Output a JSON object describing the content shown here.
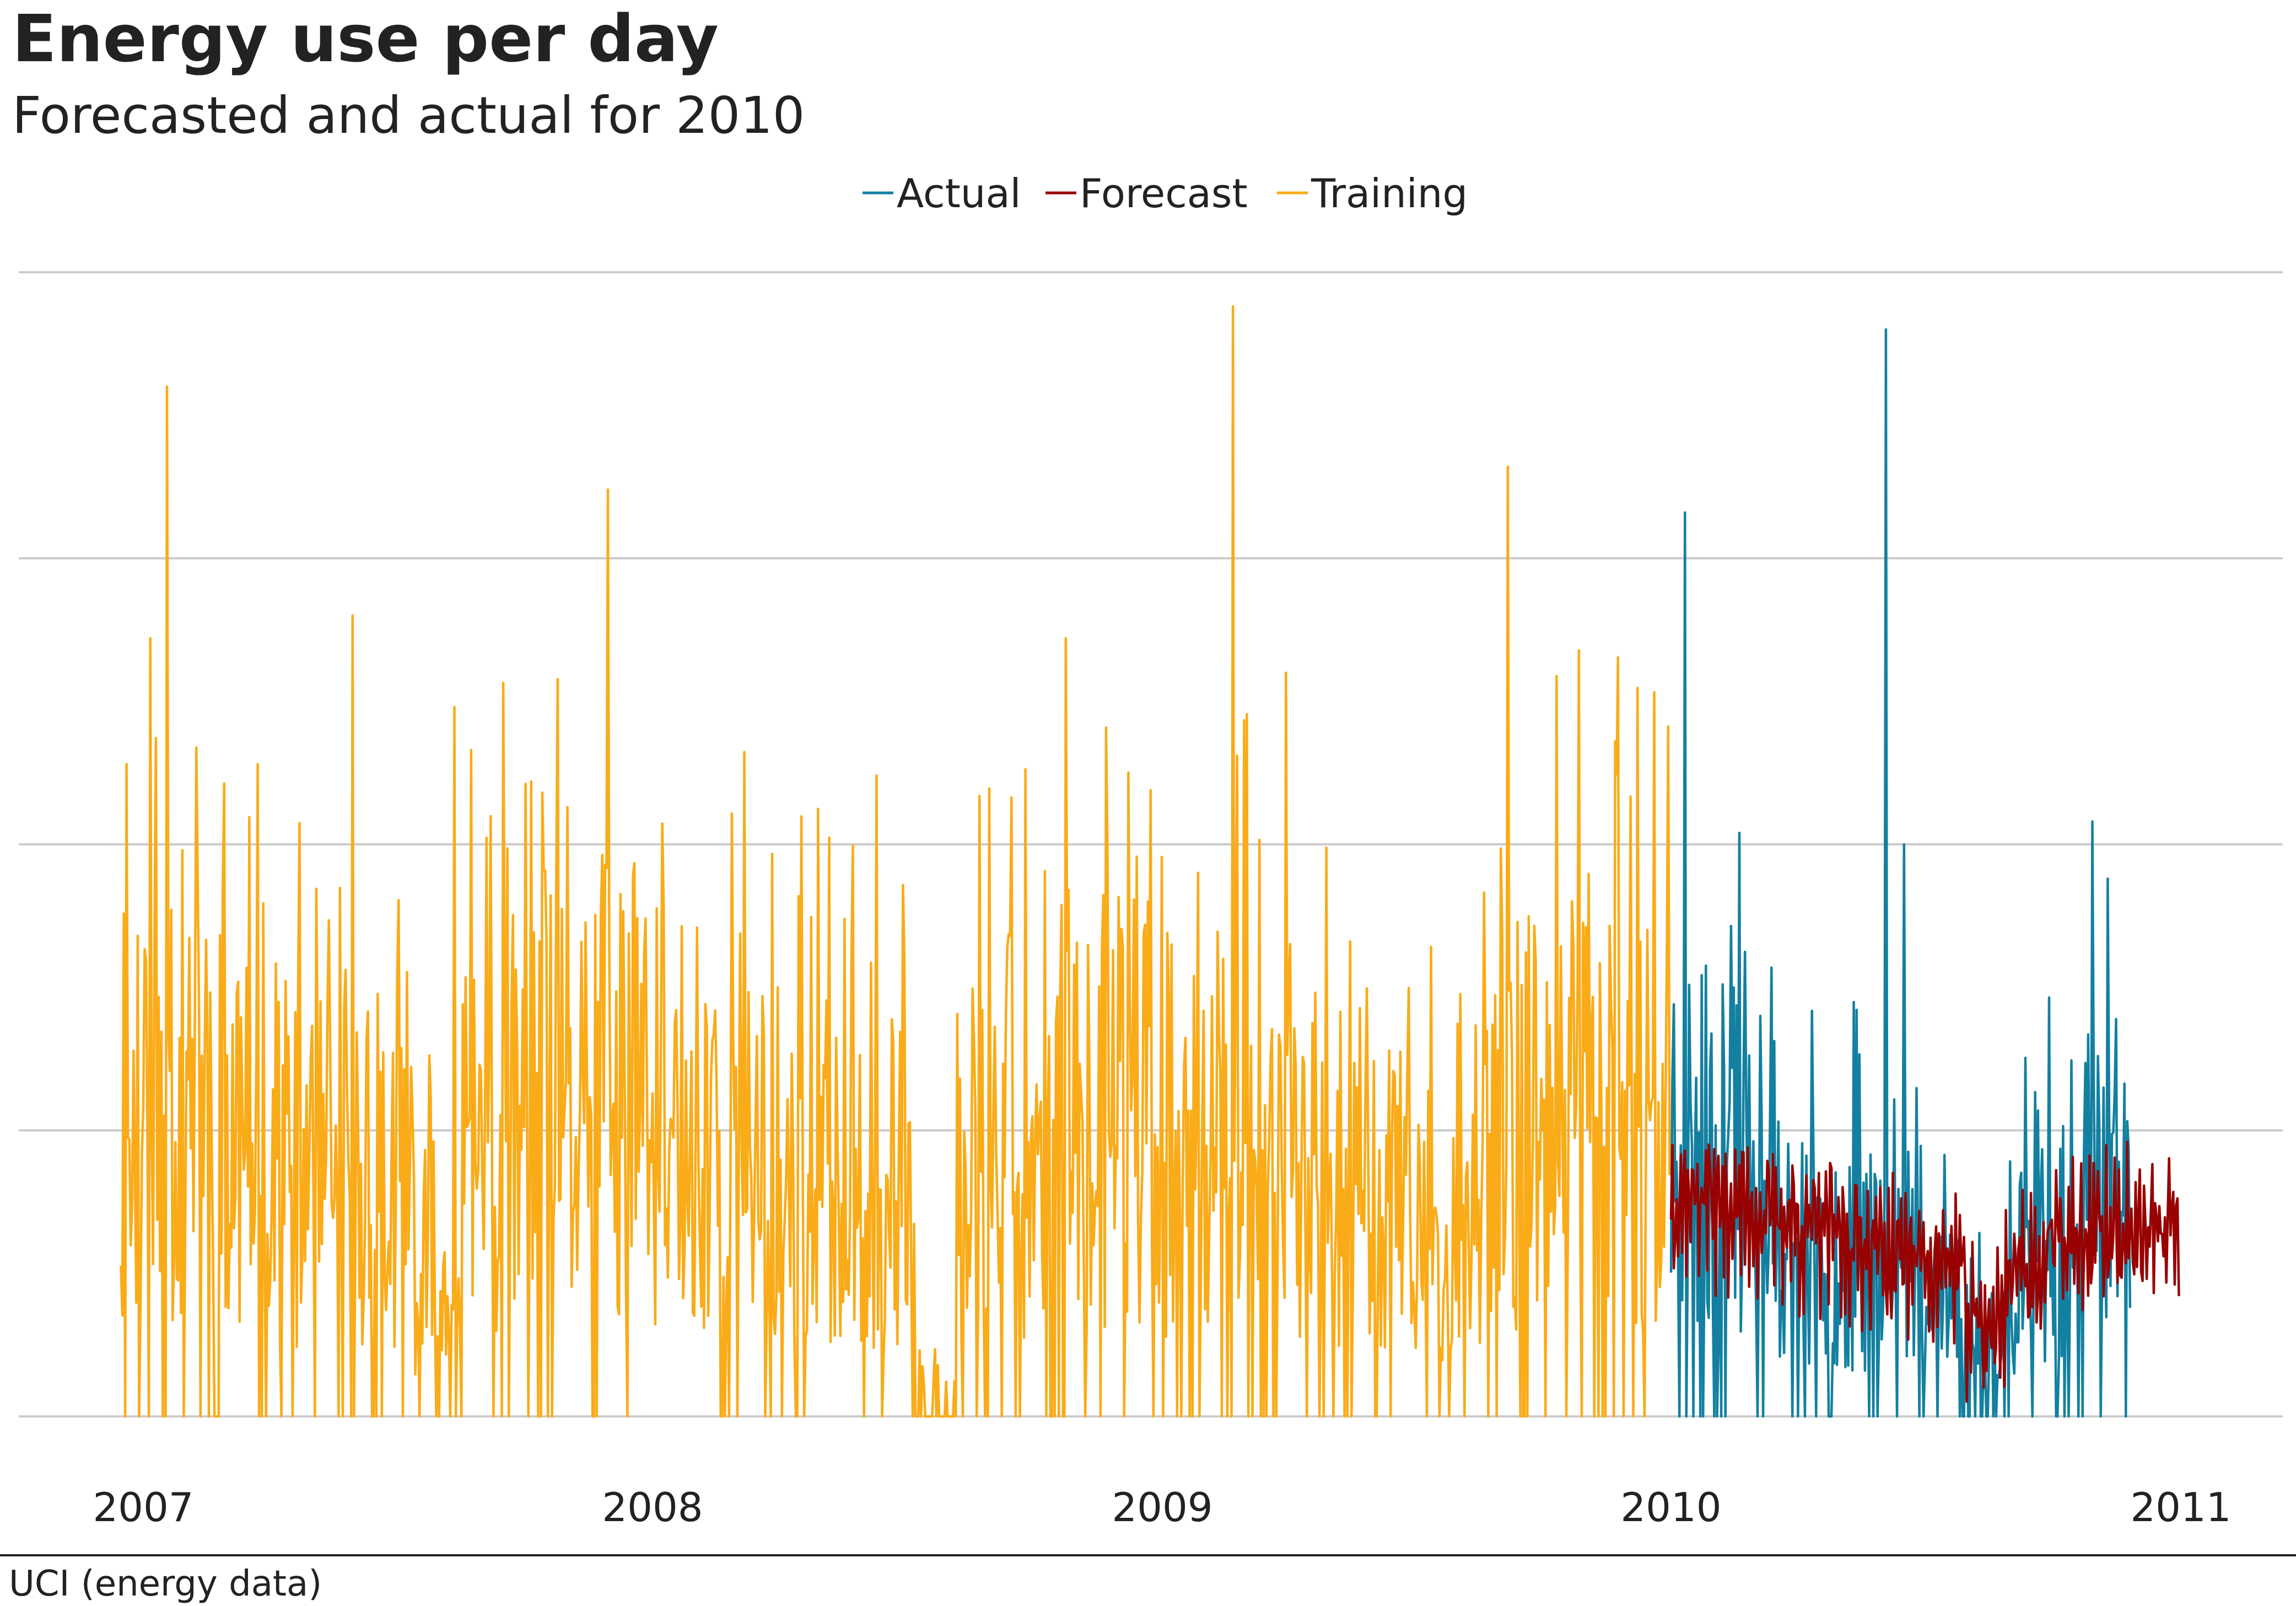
{
  "header": {
    "title": "Energy use per day",
    "subtitle": "Forecasted and actual for 2010"
  },
  "footer": {
    "source": "UCI (energy data)"
  },
  "colors": {
    "Training": "#FAAB18",
    "Actual": "#1380A1",
    "Forecast": "#990000",
    "gridline": "#cbcbcb",
    "text": "#222222"
  },
  "chart_data": {
    "type": "line",
    "title": "Energy use per day",
    "subtitle": "Forecasted and actual for 2010",
    "xlabel": "",
    "ylabel": "",
    "x_ticks": [
      "2007",
      "2008",
      "2009",
      "2010",
      "2011"
    ],
    "y_gridlines": 5,
    "y_tick_labels_shown": false,
    "grid": true,
    "legend": {
      "position": "top",
      "entries": [
        "Actual",
        "Forecast",
        "Training"
      ]
    },
    "series": [
      {
        "name": "Training",
        "x_range": [
          "2006-12-16",
          "2009-12-31"
        ],
        "points_per_month": 30,
        "monthly_baseline": [
          0.24,
          0.25,
          0.22,
          0.2,
          0.19,
          0.18,
          0.17,
          0.12,
          0.22,
          0.23,
          0.24,
          0.25,
          0.24,
          0.23,
          0.22,
          0.2,
          0.19,
          0.18,
          0.17,
          0.03,
          0.2,
          0.22,
          0.24,
          0.25,
          0.24,
          0.23,
          0.22,
          0.2,
          0.19,
          0.18,
          0.16,
          0.15,
          0.19,
          0.22,
          0.24,
          0.25,
          0.24
        ],
        "peaks": [
          {
            "date": "2006-12-20",
            "value": 0.57
          },
          {
            "date": "2007-01-06",
            "value": 0.68
          },
          {
            "date": "2007-01-18",
            "value": 0.9
          },
          {
            "date": "2007-03-24",
            "value": 0.57
          },
          {
            "date": "2007-05-31",
            "value": 0.7
          },
          {
            "date": "2007-08-12",
            "value": 0.62
          },
          {
            "date": "2007-11-30",
            "value": 0.81
          },
          {
            "date": "2008-06-10",
            "value": 0.56
          },
          {
            "date": "2008-10-24",
            "value": 0.68
          },
          {
            "date": "2009-02-21",
            "value": 0.97
          },
          {
            "date": "2009-03-31",
            "value": 0.65
          },
          {
            "date": "2009-09-06",
            "value": 0.83
          },
          {
            "date": "2009-11-22",
            "value": 0.59
          }
        ]
      },
      {
        "name": "Actual",
        "x_range": [
          "2010-01-01",
          "2010-11-26"
        ],
        "points_per_month": 30,
        "monthly_baseline": [
          0.2,
          0.18,
          0.15,
          0.13,
          0.13,
          0.12,
          0.1,
          0.06,
          0.12,
          0.14,
          0.16
        ],
        "peaks": [
          {
            "date": "2010-01-11",
            "value": 0.79
          },
          {
            "date": "2010-02-19",
            "value": 0.51
          },
          {
            "date": "2010-06-04",
            "value": 0.95
          },
          {
            "date": "2010-06-17",
            "value": 0.5
          },
          {
            "date": "2010-10-30",
            "value": 0.52
          },
          {
            "date": "2010-11-10",
            "value": 0.47
          }
        ]
      },
      {
        "name": "Forecast",
        "x_range": [
          "2010-01-01",
          "2010-12-31"
        ],
        "points_per_month": 30,
        "monthly_baseline": [
          0.18,
          0.17,
          0.16,
          0.15,
          0.14,
          0.13,
          0.12,
          0.07,
          0.12,
          0.14,
          0.15,
          0.15
        ],
        "amplitude": 0.04
      }
    ]
  }
}
